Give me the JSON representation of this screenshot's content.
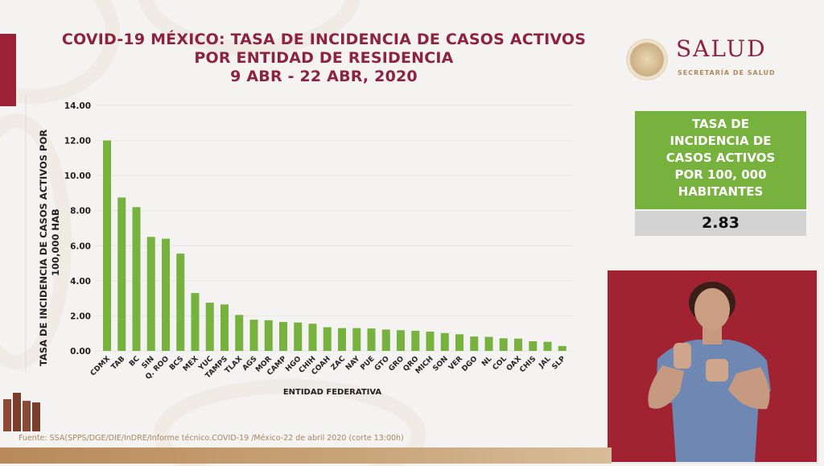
{
  "header": {
    "title_lines": [
      "COVID-19 MÉXICO: TASA DE INCIDENCIA DE CASOS ACTIVOS",
      "POR ENTIDAD DE RESIDENCIA",
      "9 ABR - 22 ABR, 2020"
    ]
  },
  "logo": {
    "name": "SALUD",
    "subtitle": "SECRETARÍA DE SALUD",
    "seal_icon": "mexico-coat-of-arms-seal"
  },
  "summary": {
    "label_lines": [
      "TASA DE",
      "INCIDENCIA DE",
      "CASOS ACTIVOS",
      "POR 100, 000",
      "HABITANTES"
    ],
    "value": "2.83",
    "label_bg": "#77b23e",
    "value_bg": "#d3d3d3"
  },
  "footer": {
    "source": "Fuente: SSA(SPPS/DGE/DIE/InDRE/Informe técnico.COVID-19 /México-22 de abril 2020 (corte 13:00h)"
  },
  "video": {
    "description": "sign-language-interpreter"
  },
  "colors": {
    "title": "#8c2340",
    "bar": "#77b23e",
    "accent_red": "#9b2235"
  },
  "chart_data": {
    "type": "bar",
    "title": "COVID-19 MÉXICO: TASA DE INCIDENCIA DE CASOS ACTIVOS POR ENTIDAD DE RESIDENCIA 9 ABR - 22 ABR, 2020",
    "xlabel": "ENTIDAD FEDERATIVA",
    "ylabel_lines": [
      "TASA DE INCIDENCIA DE CASOS ACTIVOS  POR",
      "100,000 HAB"
    ],
    "ylim": [
      0,
      14
    ],
    "yticks": [
      "0.00",
      "2.00",
      "4.00",
      "6.00",
      "8.00",
      "10.00",
      "12.00",
      "14.00"
    ],
    "grid": true,
    "categories": [
      "CDMX",
      "TAB",
      "BC",
      "SIN",
      "Q. ROO",
      "BCS",
      "MEX",
      "YUC",
      "TAMPS",
      "TLAX",
      "AGS",
      "MOR",
      "CAMP",
      "HGO",
      "CHIH",
      "COAH",
      "ZAC",
      "NAY",
      "PUE",
      "GTO",
      "GRO",
      "QRO",
      "MICH",
      "SON",
      "VER",
      "DGO",
      "NL",
      "COL",
      "OAX",
      "CHIS",
      "JAL",
      "SLP"
    ],
    "values": [
      12.0,
      8.75,
      8.2,
      6.5,
      6.4,
      5.55,
      3.3,
      2.75,
      2.65,
      2.05,
      1.78,
      1.75,
      1.65,
      1.62,
      1.55,
      1.35,
      1.3,
      1.3,
      1.28,
      1.22,
      1.18,
      1.15,
      1.1,
      1.02,
      0.95,
      0.82,
      0.8,
      0.72,
      0.7,
      0.55,
      0.52,
      0.28
    ]
  }
}
